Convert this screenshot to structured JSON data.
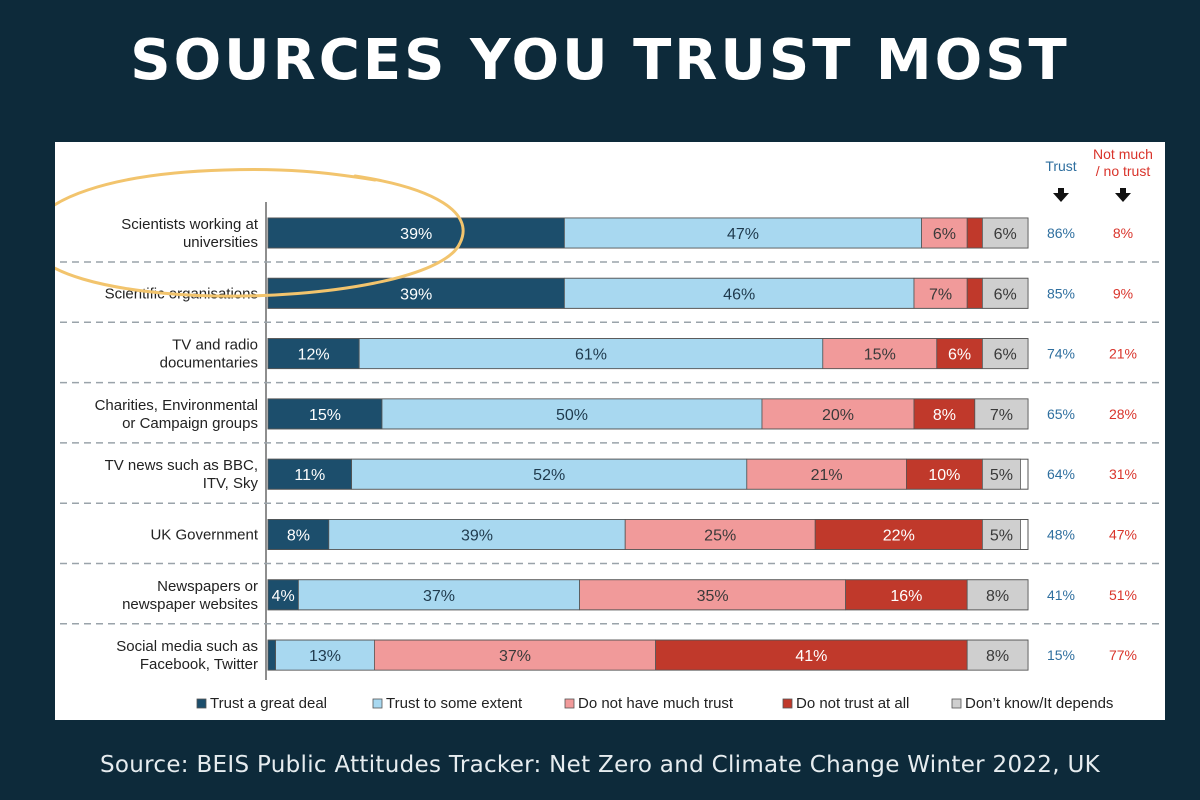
{
  "page": {
    "title": "SOURCES YOU TRUST MOST",
    "source": "Source: BEIS Public Attitudes Tracker: Net Zero and Climate Change Winter 2022, UK"
  },
  "colors": {
    "background": "#0d2a3a",
    "trust_great": "#1c4e6c",
    "trust_some": "#a8d8f0",
    "not_much": "#f19a9a",
    "not_at_all": "#c0392b",
    "dont_know": "#cfcfcf",
    "trust_text": "#2f6f9f",
    "no_trust_text": "#d9342b",
    "highlight": "#f2c46d"
  },
  "chart_data": {
    "type": "bar",
    "stacked": true,
    "orientation": "horizontal",
    "categories": [
      [
        "Scientists working at",
        "universities"
      ],
      [
        "Scientific organisations"
      ],
      [
        "TV and radio",
        "documentaries"
      ],
      [
        "Charities, Environmental",
        "or Campaign groups"
      ],
      [
        "TV news such as BBC,",
        "ITV, Sky"
      ],
      [
        "UK Government"
      ],
      [
        "Newspapers or",
        "newspaper websites"
      ],
      [
        "Social media such as",
        "Facebook, Twitter"
      ]
    ],
    "series": [
      {
        "name": "Trust a great deal",
        "values": [
          39,
          39,
          12,
          15,
          11,
          8,
          4,
          1
        ],
        "labels": [
          "39%",
          "39%",
          "12%",
          "15%",
          "11%",
          "8%",
          "4%",
          ""
        ]
      },
      {
        "name": "Trust to some extent",
        "values": [
          47,
          46,
          61,
          50,
          52,
          39,
          37,
          13
        ],
        "labels": [
          "47%",
          "46%",
          "61%",
          "50%",
          "52%",
          "39%",
          "37%",
          "13%"
        ]
      },
      {
        "name": "Do not have much trust",
        "values": [
          6,
          7,
          15,
          20,
          21,
          25,
          35,
          37
        ],
        "labels": [
          "6%",
          "7%",
          "15%",
          "20%",
          "21%",
          "25%",
          "35%",
          "37%"
        ]
      },
      {
        "name": "Do not trust at all",
        "values": [
          2,
          2,
          6,
          8,
          10,
          22,
          16,
          41
        ],
        "labels": [
          "",
          "",
          "6%",
          "8%",
          "10%",
          "22%",
          "16%",
          "41%"
        ]
      },
      {
        "name": "Don’t know/It depends",
        "values": [
          6,
          6,
          6,
          7,
          5,
          5,
          8,
          8
        ],
        "labels": [
          "6%",
          "6%",
          "6%",
          "7%",
          "5%",
          "5%",
          "8%",
          "8%"
        ]
      }
    ],
    "summary": {
      "trust_header": "Trust",
      "no_trust_header": [
        "Not much",
        "/ no trust"
      ],
      "trust": [
        "86%",
        "85%",
        "74%",
        "65%",
        "64%",
        "48%",
        "41%",
        "15%"
      ],
      "no_trust": [
        "8%",
        "9%",
        "21%",
        "28%",
        "31%",
        "47%",
        "51%",
        "77%"
      ]
    },
    "legend_position": "bottom",
    "highlighted_category": 0
  }
}
